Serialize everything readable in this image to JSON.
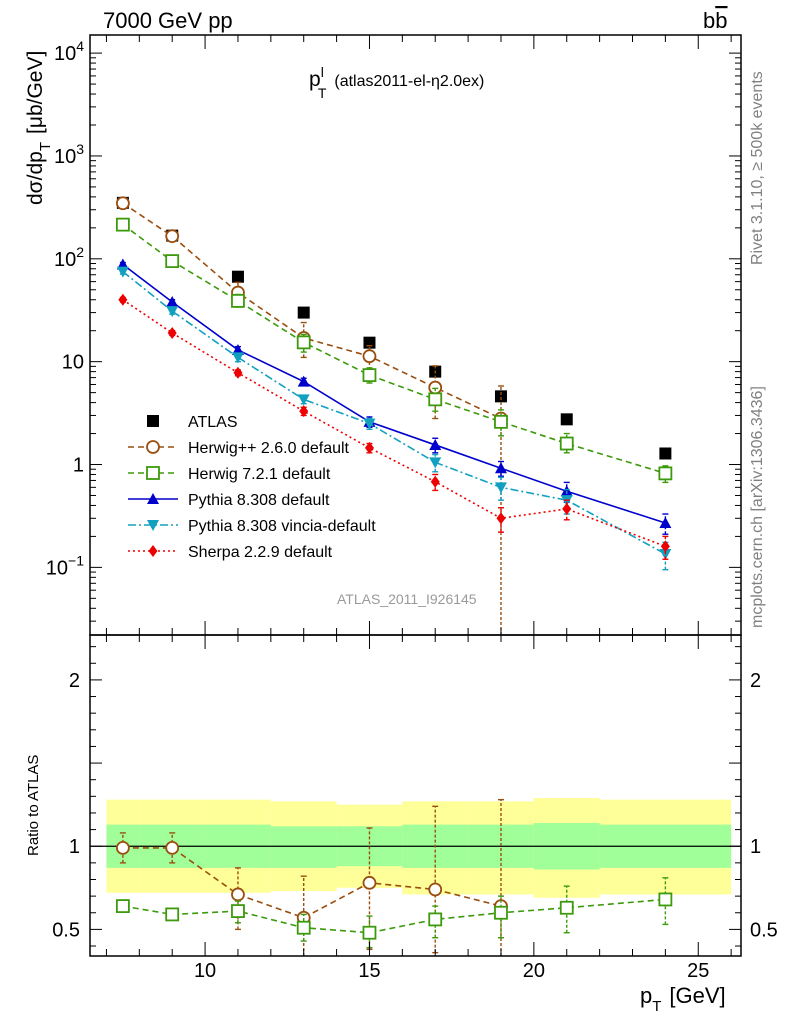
{
  "header": {
    "left": "7000 GeV pp",
    "right_main": "b",
    "right_bar": "b"
  },
  "side_labels": {
    "rivet": "Rivet 3.1.10, ≥ 500k events",
    "mcplots": "mcplots.cern.ch [arXiv:1306.3436]"
  },
  "chart_data": [
    {
      "type": "scatter",
      "panel": "main",
      "title_main": "p",
      "title_sup": "l",
      "title_sub": "T",
      "title_rest": "(atlas2011-el-η2.0ex)",
      "ylabel_main": "dσ/dp",
      "ylabel_sub": "T",
      "ylabel_unit": "[μb/GeV]",
      "y_scale": "log",
      "ylim": [
        0.022,
        15000
      ],
      "xlim": [
        6.5,
        26.3
      ],
      "y_ticks": [
        {
          "value": 10000,
          "base": "10",
          "exp": "4"
        },
        {
          "value": 1000,
          "base": "10",
          "exp": "3"
        },
        {
          "value": 100,
          "base": "10",
          "exp": "2"
        },
        {
          "value": 10,
          "base": "10",
          "exp": ""
        },
        {
          "value": 1,
          "base": "1",
          "exp": ""
        },
        {
          "value": 0.1,
          "base": "10",
          "exp": "−1"
        }
      ],
      "watermark": "ATLAS_2011_I926145",
      "legend_position": "lower-left",
      "series": [
        {
          "name": "ATLAS",
          "color": "#000000",
          "marker": "square-filled",
          "line": "none",
          "x": [
            7.5,
            9,
            11,
            13,
            15,
            17,
            19,
            21,
            24
          ],
          "y": [
            350,
            168,
            67,
            30,
            15.3,
            8.0,
            4.6,
            2.75,
            1.28
          ],
          "err_lo": [
            0,
            0,
            0,
            0,
            0,
            0,
            0,
            0,
            0
          ],
          "err_hi": [
            0,
            0,
            0,
            0,
            0,
            0,
            0,
            0,
            0
          ]
        },
        {
          "name": "Herwig++ 2.6.0 default",
          "color": "#9a4f10",
          "marker": "circle-open",
          "line": "dashed",
          "x": [
            7.5,
            9,
            11,
            13,
            15,
            17,
            19
          ],
          "y": [
            347,
            166,
            47,
            17,
            11.3,
            5.6,
            2.8
          ],
          "err_lo": [
            20,
            10,
            8,
            6,
            3,
            2.8,
            2.78
          ],
          "err_hi": [
            20,
            10,
            12,
            7,
            3,
            3.5,
            3
          ]
        },
        {
          "name": "Herwig 7.2.1 default",
          "color": "#3c9a0c",
          "marker": "square-open",
          "line": "dashed",
          "x": [
            7.5,
            9,
            11,
            13,
            15,
            17,
            19,
            21,
            24
          ],
          "y": [
            215,
            95,
            39,
            15.4,
            7.4,
            4.3,
            2.6,
            1.6,
            0.82
          ],
          "err_lo": [
            12,
            5,
            5,
            3,
            1.2,
            1,
            0.7,
            0.3,
            0.15
          ],
          "err_hi": [
            12,
            5,
            6,
            3,
            1.3,
            1.2,
            0.8,
            0.4,
            0.15
          ]
        },
        {
          "name": "Pythia 8.308 default",
          "color": "#0000cc",
          "marker": "triangle-up",
          "line": "solid",
          "x": [
            7.5,
            9,
            11,
            13,
            15,
            17,
            19,
            21,
            24
          ],
          "y": [
            88,
            38,
            13,
            6.4,
            2.6,
            1.55,
            0.92,
            0.55,
            0.27
          ],
          "err_lo": [
            4,
            2,
            1,
            0.5,
            0.3,
            0.25,
            0.15,
            0.12,
            0.06
          ],
          "err_hi": [
            4,
            2,
            1,
            0.5,
            0.3,
            0.25,
            0.15,
            0.12,
            0.06
          ]
        },
        {
          "name": "Pythia 8.308 vincia-default",
          "color": "#12a0c0",
          "marker": "triangle-down",
          "line": "dashdot",
          "x": [
            7.5,
            9,
            11,
            13,
            15,
            17,
            19,
            21,
            24
          ],
          "y": [
            75,
            31,
            11,
            4.3,
            2.5,
            1.05,
            0.6,
            0.45,
            0.135
          ],
          "err_lo": [
            4,
            2,
            1,
            0.4,
            0.3,
            0.2,
            0.15,
            0.12,
            0.04
          ],
          "err_hi": [
            4,
            2,
            1,
            0.4,
            0.3,
            0.2,
            0.15,
            0.12,
            0.04
          ]
        },
        {
          "name": "Sherpa 2.2.9 default",
          "color": "#ee0000",
          "marker": "diamond",
          "line": "dotted",
          "x": [
            7.5,
            9,
            11,
            13,
            15,
            17,
            19,
            21,
            24
          ],
          "y": [
            40,
            19,
            7.8,
            3.3,
            1.45,
            0.68,
            0.3,
            0.37,
            0.16
          ],
          "err_lo": [
            2,
            1,
            0.5,
            0.3,
            0.15,
            0.12,
            0.08,
            0.08,
            0.04
          ],
          "err_hi": [
            2,
            1,
            0.5,
            0.3,
            0.15,
            0.12,
            0.08,
            0.08,
            0.04
          ]
        }
      ]
    },
    {
      "type": "scatter",
      "panel": "ratio",
      "ylabel": "Ratio to ATLAS",
      "xlabel_main": "p",
      "xlabel_sub": "T",
      "xlabel_unit": "[GeV]",
      "ylim": [
        0.34,
        2.27
      ],
      "xlim": [
        6.5,
        26.3
      ],
      "x_ticks": [
        10,
        15,
        20,
        25
      ],
      "y_ticks": [
        {
          "value": 0.5,
          "label": "0.5"
        },
        {
          "value": 1,
          "label": "1"
        },
        {
          "value": 2,
          "label": "2"
        }
      ],
      "bands": {
        "green_color": "#a0ff99",
        "yellow_color": "#ffff99",
        "bins": [
          {
            "x_lo": 7.0,
            "x_hi": 8.0,
            "inner_lo": 0.87,
            "inner_hi": 1.13,
            "outer_lo": 0.72,
            "outer_hi": 1.28
          },
          {
            "x_lo": 8.0,
            "x_hi": 10.0,
            "inner_lo": 0.87,
            "inner_hi": 1.13,
            "outer_lo": 0.72,
            "outer_hi": 1.28
          },
          {
            "x_lo": 10.0,
            "x_hi": 12.0,
            "inner_lo": 0.87,
            "inner_hi": 1.13,
            "outer_lo": 0.72,
            "outer_hi": 1.28
          },
          {
            "x_lo": 12.0,
            "x_hi": 14.0,
            "inner_lo": 0.87,
            "inner_hi": 1.12,
            "outer_lo": 0.73,
            "outer_hi": 1.27
          },
          {
            "x_lo": 14.0,
            "x_hi": 16.0,
            "inner_lo": 0.88,
            "inner_hi": 1.12,
            "outer_lo": 0.75,
            "outer_hi": 1.25
          },
          {
            "x_lo": 16.0,
            "x_hi": 18.0,
            "inner_lo": 0.87,
            "inner_hi": 1.13,
            "outer_lo": 0.71,
            "outer_hi": 1.27
          },
          {
            "x_lo": 18.0,
            "x_hi": 20.0,
            "inner_lo": 0.87,
            "inner_hi": 1.13,
            "outer_lo": 0.71,
            "outer_hi": 1.27
          },
          {
            "x_lo": 20.0,
            "x_hi": 22.0,
            "inner_lo": 0.86,
            "inner_hi": 1.14,
            "outer_lo": 0.69,
            "outer_hi": 1.29
          },
          {
            "x_lo": 22.0,
            "x_hi": 26.0,
            "inner_lo": 0.87,
            "inner_hi": 1.13,
            "outer_lo": 0.71,
            "outer_hi": 1.28
          }
        ]
      },
      "series": [
        {
          "name": "Herwig++ 2.6.0 default",
          "color": "#9a4f10",
          "marker": "circle-open",
          "line": "dashed",
          "x": [
            7.5,
            9,
            11,
            13,
            15,
            17,
            19
          ],
          "y": [
            0.99,
            0.99,
            0.71,
            0.57,
            0.78,
            0.74,
            0.64
          ],
          "err_lo": [
            0.09,
            0.09,
            0.21,
            0.27,
            0.4,
            0.38,
            0.3
          ],
          "err_hi": [
            0.09,
            0.09,
            0.16,
            0.25,
            0.33,
            0.5,
            0.64
          ]
        },
        {
          "name": "Herwig 7.2.1 default",
          "color": "#3c9a0c",
          "marker": "square-open",
          "line": "dashed",
          "x": [
            7.5,
            9,
            11,
            13,
            15,
            17,
            19,
            21,
            24
          ],
          "y": [
            0.64,
            0.59,
            0.61,
            0.51,
            0.48,
            0.56,
            0.6,
            0.63,
            0.68
          ],
          "err_lo": [
            0.0,
            0.0,
            0.07,
            0.08,
            0.09,
            0.11,
            0.15,
            0.15,
            0.15
          ],
          "err_hi": [
            0.0,
            0.0,
            0.06,
            0.08,
            0.1,
            0.08,
            0.1,
            0.13,
            0.13
          ]
        }
      ]
    }
  ]
}
